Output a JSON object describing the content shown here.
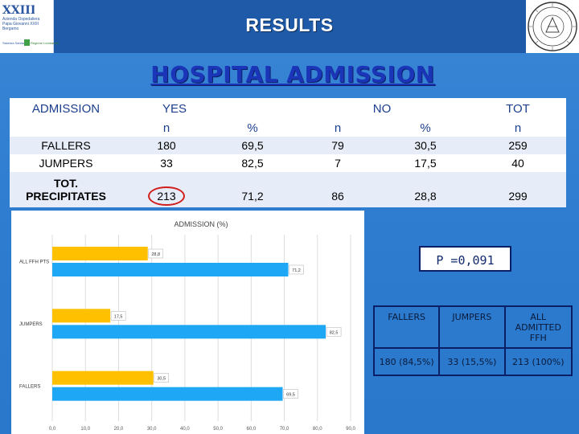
{
  "header": {
    "title": "RESULTS",
    "logo_left_lines": [
      "Azienda Ospedaliera",
      "Papa Giovanni XXIII",
      "Bergamo"
    ],
    "logo_left_footer": [
      "Sistema Sanitario",
      "Regione Lombardia"
    ]
  },
  "slide_title": "HOSPITAL ADMISSION",
  "table": {
    "header1": {
      "admission": "ADMISSION",
      "yes": "YES",
      "no": "NO",
      "tot": "TOT"
    },
    "header2": {
      "yes_n": "n",
      "yes_pct": "%",
      "no_n": "n",
      "no_pct": "%",
      "tot_n": "n"
    },
    "rows": [
      {
        "label": "FALLERS",
        "yes_n": "180",
        "yes_pct": "69,5",
        "no_n": "79",
        "no_pct": "30,5",
        "tot_n": "259"
      },
      {
        "label": "JUMPERS",
        "yes_n": "33",
        "yes_pct": "82,5",
        "no_n": "7",
        "no_pct": "17,5",
        "tot_n": "40"
      },
      {
        "label_line1": "TOT.",
        "label_line2": "PRECIPITATES",
        "yes_n": "213",
        "yes_pct": "71,2",
        "no_n": "86",
        "no_pct": "28,8",
        "tot_n": "299"
      }
    ]
  },
  "p_value": "P =0,091",
  "summary": {
    "headers": [
      "FALLERS",
      "JUMPERS",
      "ALL ADMITTED FFH"
    ],
    "values": [
      "180 (84,5%)",
      "33 (15,5%)",
      "213 (100%)"
    ]
  },
  "chart_data": {
    "type": "bar",
    "orientation": "horizontal",
    "title": "ADMISSION (%)",
    "categories": [
      "ALL FFH PTS",
      "JUMPERS",
      "FALLERS"
    ],
    "series": [
      {
        "values": [
          28.8,
          17.5,
          30.5
        ],
        "color": "#ffc000"
      },
      {
        "values": [
          71.2,
          82.5,
          69.5
        ],
        "color": "#1ea7f5"
      }
    ],
    "data_labels": [
      [
        "28,8",
        "17,5",
        "30,5"
      ],
      [
        "71,2",
        "82,5",
        "69,5"
      ]
    ],
    "xlim": [
      0,
      90
    ],
    "xticks": [
      "0,0",
      "10,0",
      "20,0",
      "30,0",
      "40,0",
      "50,0",
      "60,0",
      "70,0",
      "80,0",
      "90,0"
    ],
    "grid": true
  }
}
